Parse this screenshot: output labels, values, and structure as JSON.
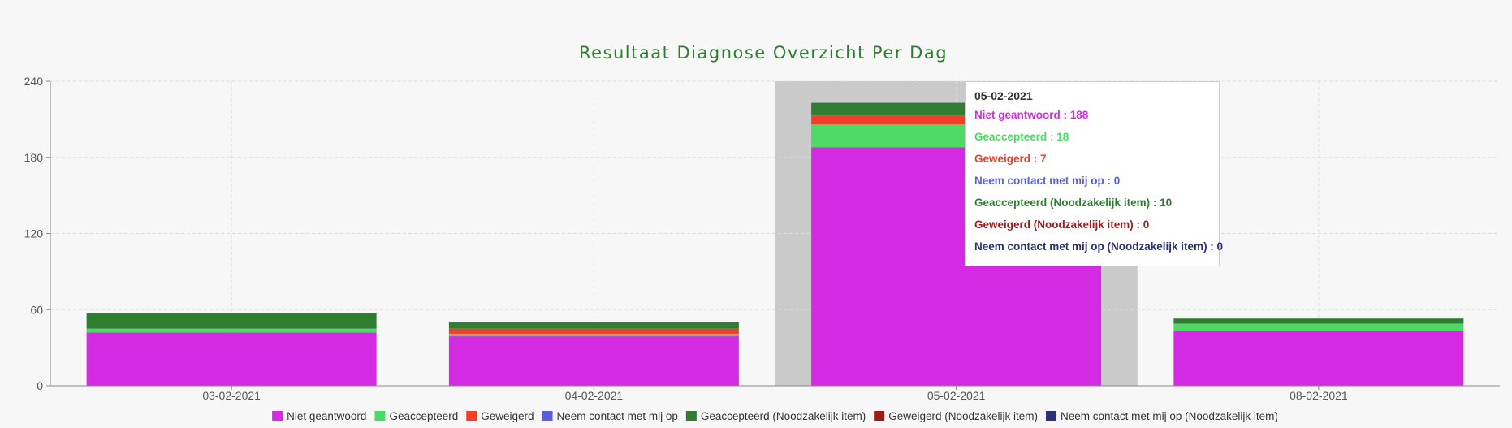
{
  "chart_data": {
    "type": "bar",
    "stacked": true,
    "title": "Resultaat Diagnose Overzicht Per Dag",
    "xlabel": "",
    "ylabel": "",
    "categories": [
      "03-02-2021",
      "04-02-2021",
      "05-02-2021",
      "08-02-2021"
    ],
    "ylim": [
      0,
      240
    ],
    "yticks": [
      0,
      60,
      120,
      180,
      240
    ],
    "grid": true,
    "legend_position": "bottom",
    "highlighted_category": "05-02-2021",
    "series": [
      {
        "name": "Niet geantwoord",
        "color": "#d42ae4",
        "values": [
          42,
          39,
          188,
          43
        ]
      },
      {
        "name": "Geaccepteerd",
        "color": "#4cd964",
        "values": [
          3,
          2,
          18,
          6
        ]
      },
      {
        "name": "Geweigerd",
        "color": "#f23f2a",
        "values": [
          0,
          4,
          7,
          0
        ]
      },
      {
        "name": "Neem contact met mij op",
        "color": "#5a5fd6",
        "values": [
          0,
          0,
          0,
          0
        ]
      },
      {
        "name": "Geaccepteerd (Noodzakelijk item)",
        "color": "#2e7d32",
        "values": [
          12,
          5,
          10,
          4
        ]
      },
      {
        "name": "Geweigerd (Noodzakelijk item)",
        "color": "#9c1c1c",
        "values": [
          0,
          0,
          0,
          0
        ]
      },
      {
        "name": "Neem contact met mij op (Noodzakelijk item)",
        "color": "#2b3177",
        "values": [
          0,
          0,
          0,
          0
        ]
      }
    ]
  },
  "tooltip": {
    "title": "05-02-2021",
    "rows": [
      {
        "text": "Niet geantwoord : 188",
        "color": "#d42ae4"
      },
      {
        "text": "Geaccepteerd : 18",
        "color": "#4cd964"
      },
      {
        "text": "Geweigerd : 7",
        "color": "#f23f2a"
      },
      {
        "text": "Neem contact met mij op : 0",
        "color": "#5a5fd6"
      },
      {
        "text": "Geaccepteerd (Noodzakelijk item) : 10",
        "color": "#2e7d32"
      },
      {
        "text": "Geweigerd (Noodzakelijk item) : 0",
        "color": "#9c1c1c"
      },
      {
        "text": "Neem contact met mij op (Noodzakelijk item) : 0",
        "color": "#2b3177"
      }
    ]
  }
}
